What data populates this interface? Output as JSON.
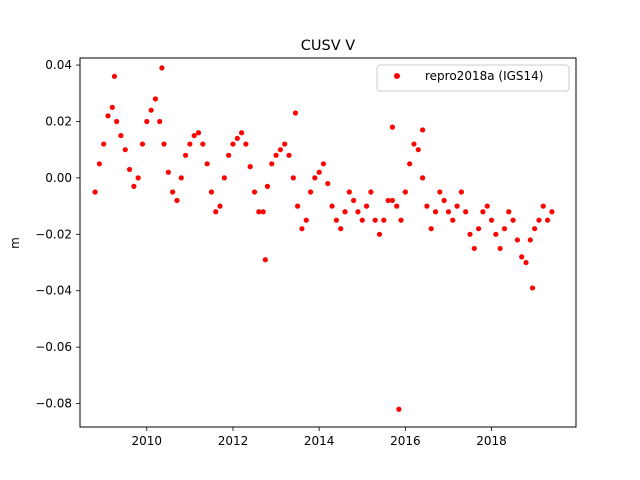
{
  "chart_data": {
    "type": "scatter",
    "title": "CUSV V",
    "xlabel": "",
    "ylabel": "m",
    "xlim": [
      2008.45,
      2019.96
    ],
    "ylim": [
      -0.0883,
      0.0425
    ],
    "xticks": [
      2010,
      2012,
      2014,
      2016,
      2018
    ],
    "yticks": [
      0.04,
      0.02,
      0.0,
      -0.02,
      -0.04,
      -0.06,
      -0.08
    ],
    "ytick_labels": [
      "0.04",
      "0.02",
      "0.00",
      "−0.02",
      "−0.04",
      "−0.06",
      "−0.08"
    ],
    "grid": false,
    "legend_position": "top-right",
    "series": [
      {
        "name": "repro2018a (IGS14)",
        "color": "#ff0000",
        "marker": "circle",
        "x": [
          2008.8,
          2008.9,
          2009.0,
          2009.1,
          2009.2,
          2009.3,
          2009.4,
          2009.5,
          2009.6,
          2009.7,
          2009.8,
          2009.9,
          2010.0,
          2010.1,
          2010.2,
          2010.3,
          2010.4,
          2010.5,
          2010.6,
          2010.7,
          2010.8,
          2010.9,
          2011.0,
          2011.1,
          2011.2,
          2011.3,
          2011.4,
          2011.5,
          2011.6,
          2011.7,
          2011.8,
          2011.9,
          2012.0,
          2012.1,
          2012.2,
          2012.3,
          2012.4,
          2012.5,
          2012.6,
          2012.7,
          2012.8,
          2012.9,
          2013.0,
          2013.1,
          2013.2,
          2013.3,
          2013.4,
          2013.5,
          2013.6,
          2013.7,
          2013.8,
          2013.9,
          2014.0,
          2014.1,
          2014.2,
          2014.3,
          2014.4,
          2014.5,
          2014.6,
          2014.7,
          2014.8,
          2014.9,
          2015.0,
          2015.1,
          2015.2,
          2015.3,
          2015.4,
          2015.5,
          2015.6,
          2015.7,
          2015.8,
          2015.9,
          2016.0,
          2016.1,
          2016.2,
          2016.3,
          2016.4,
          2016.5,
          2016.6,
          2016.7,
          2016.8,
          2016.9,
          2017.0,
          2017.1,
          2017.2,
          2017.3,
          2017.4,
          2017.5,
          2017.6,
          2017.7,
          2017.8,
          2017.9,
          2018.0,
          2018.1,
          2018.2,
          2018.3,
          2018.4,
          2018.5,
          2018.6,
          2018.7,
          2018.8,
          2018.9,
          2019.0,
          2019.1,
          2019.2,
          2019.3,
          2019.4,
          2009.25,
          2010.35,
          2012.75,
          2015.85,
          2015.7,
          2018.95,
          2016.4,
          2013.45
        ],
        "y": [
          -0.005,
          0.005,
          0.012,
          0.022,
          0.025,
          0.02,
          0.015,
          0.01,
          0.003,
          -0.003,
          0.0,
          0.012,
          0.02,
          0.024,
          0.028,
          0.02,
          0.012,
          0.002,
          -0.005,
          -0.008,
          0.0,
          0.008,
          0.012,
          0.015,
          0.016,
          0.012,
          0.005,
          -0.005,
          -0.012,
          -0.01,
          0.0,
          0.008,
          0.012,
          0.014,
          0.016,
          0.012,
          0.004,
          -0.005,
          -0.012,
          -0.012,
          -0.003,
          0.005,
          0.008,
          0.01,
          0.012,
          0.008,
          0.0,
          -0.01,
          -0.018,
          -0.015,
          -0.005,
          0.0,
          0.002,
          0.005,
          -0.002,
          -0.01,
          -0.015,
          -0.018,
          -0.012,
          -0.005,
          -0.008,
          -0.012,
          -0.015,
          -0.01,
          -0.005,
          -0.015,
          -0.02,
          -0.015,
          -0.008,
          -0.008,
          -0.01,
          -0.015,
          -0.005,
          0.005,
          0.012,
          0.01,
          0.0,
          -0.01,
          -0.018,
          -0.012,
          -0.005,
          -0.008,
          -0.012,
          -0.015,
          -0.01,
          -0.005,
          -0.012,
          -0.02,
          -0.025,
          -0.018,
          -0.012,
          -0.01,
          -0.015,
          -0.02,
          -0.025,
          -0.018,
          -0.012,
          -0.015,
          -0.022,
          -0.028,
          -0.03,
          -0.022,
          -0.018,
          -0.015,
          -0.01,
          -0.015,
          -0.012,
          0.036,
          0.039,
          -0.029,
          -0.082,
          0.018,
          -0.039,
          0.017,
          0.023
        ]
      }
    ]
  }
}
